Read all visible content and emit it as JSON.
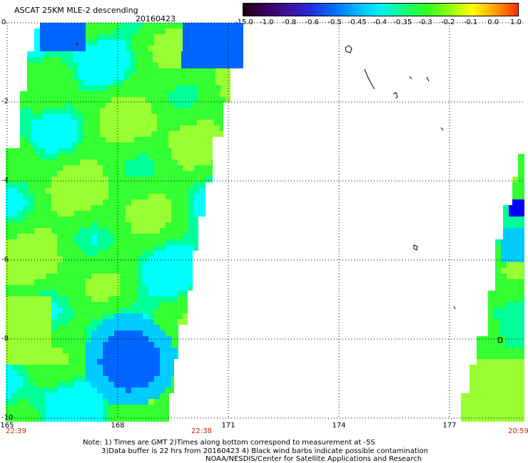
{
  "header": {
    "title": "ASCAT 25KM MLE-2 descending",
    "date": "20160423"
  },
  "colorbar": {
    "tick_labels": [
      "-15.0",
      "-1.0",
      "-0.8",
      "-0.6",
      "-0.5",
      "-0.45",
      "-0.4",
      "-0.35",
      "-0.3",
      "-0.2",
      "-0.1",
      "0.0",
      "1.0"
    ],
    "colors": [
      "#1a0010",
      "#3a0060",
      "#4010a0",
      "#2030e0",
      "#0070ff",
      "#00b8ff",
      "#00f0f0",
      "#10ff80",
      "#30ff20",
      "#90ff10",
      "#ffff00",
      "#ffa000",
      "#ff3000"
    ]
  },
  "axes": {
    "lat_labels": [
      "0",
      "-2",
      "-4",
      "-6",
      "-8",
      "-10"
    ],
    "lon_labels": [
      "165",
      "168",
      "171",
      "174",
      "177"
    ]
  },
  "swath_times": {
    "left_start": "22:39",
    "left_end": "22:38",
    "right": "20:59"
  },
  "notes": {
    "line1": "Note: 1) Times are GMT 2)Times along bottom correspond to measurement at -5S",
    "line2": "3)Data buffer is 22 hrs from 20160423 4) Black wind barbs indicate possible contamination",
    "line3": "NOAA/NESDIS/Center for Satellite Applications and Research"
  },
  "map_data": {
    "palette": {
      "bright_green": "#33ff33",
      "yellow_green": "#99ff33",
      "cyan": "#00ffff",
      "sky_blue": "#00ccff",
      "blue": "#0066ff",
      "deep_blue": "#0000ff",
      "teal_green": "#00ff99"
    }
  }
}
